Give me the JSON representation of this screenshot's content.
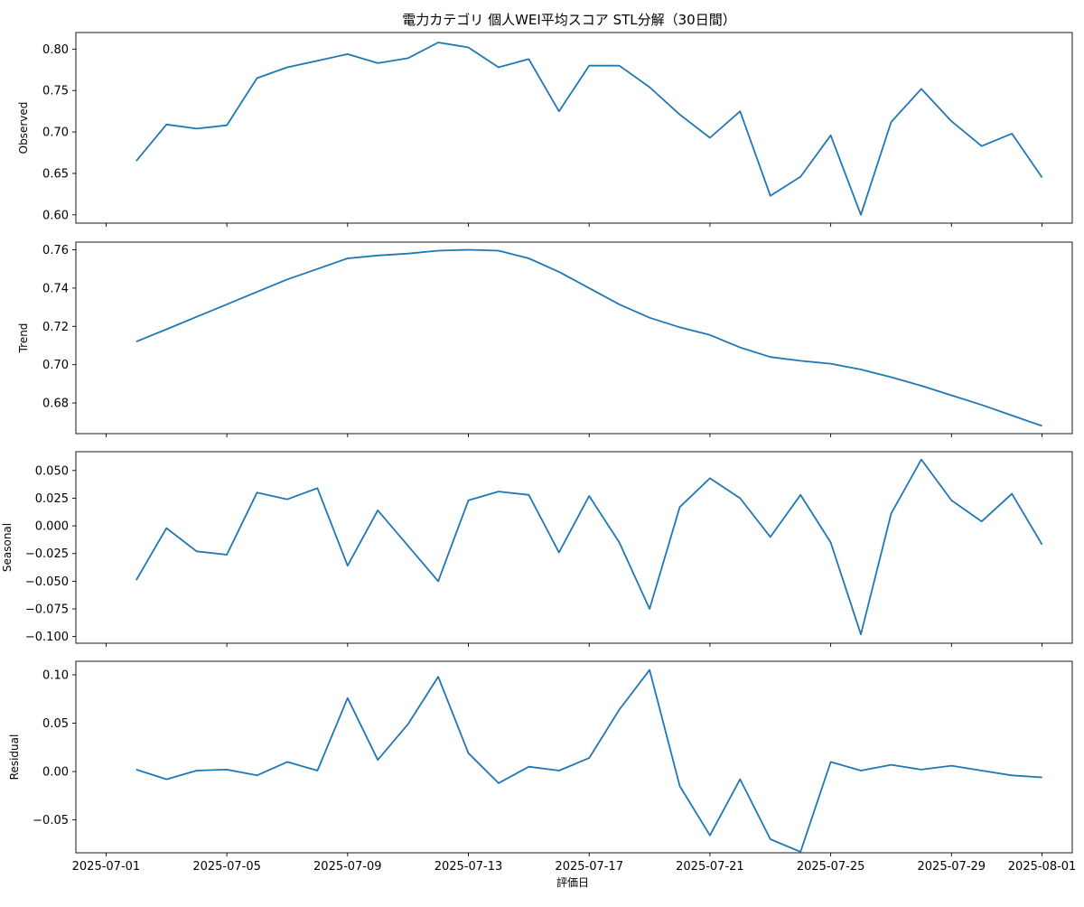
{
  "chart_data": {
    "type": "line",
    "title": "電力カテゴリ 個人WEI平均スコア STL分解（30日間）",
    "xlabel": "評価日",
    "line_color": "#1f77b4",
    "x": [
      "2025-07-02",
      "2025-07-03",
      "2025-07-04",
      "2025-07-05",
      "2025-07-06",
      "2025-07-07",
      "2025-07-08",
      "2025-07-09",
      "2025-07-10",
      "2025-07-11",
      "2025-07-12",
      "2025-07-13",
      "2025-07-14",
      "2025-07-15",
      "2025-07-16",
      "2025-07-17",
      "2025-07-18",
      "2025-07-19",
      "2025-07-20",
      "2025-07-21",
      "2025-07-22",
      "2025-07-23",
      "2025-07-24",
      "2025-07-25",
      "2025-07-26",
      "2025-07-27",
      "2025-07-28",
      "2025-07-29",
      "2025-07-30",
      "2025-07-31",
      "2025-08-01"
    ],
    "x_ticks": [
      "2025-07-01",
      "2025-07-05",
      "2025-07-09",
      "2025-07-13",
      "2025-07-17",
      "2025-07-21",
      "2025-07-25",
      "2025-07-29",
      "2025-08-01"
    ],
    "xlim": [
      "2025-06-30",
      "2025-08-02"
    ],
    "panels": [
      {
        "name": "observed",
        "ylabel": "Observed",
        "ylim": [
          0.59,
          0.82
        ],
        "y_ticks": [
          "0.60",
          "0.65",
          "0.70",
          "0.75",
          "0.80"
        ],
        "values": [
          0.665,
          0.709,
          0.704,
          0.708,
          0.765,
          0.778,
          0.786,
          0.794,
          0.783,
          0.789,
          0.808,
          0.802,
          0.778,
          0.788,
          0.725,
          0.78,
          0.78,
          0.754,
          0.721,
          0.693,
          0.725,
          0.623,
          0.646,
          0.696,
          0.6,
          0.712,
          0.752,
          0.713,
          0.683,
          0.698,
          0.645
        ]
      },
      {
        "name": "trend",
        "ylabel": "Trend",
        "ylim": [
          0.664,
          0.764
        ],
        "y_ticks": [
          "0.68",
          "0.70",
          "0.72",
          "0.74",
          "0.76"
        ],
        "values": [
          0.712,
          0.7185,
          0.725,
          0.7315,
          0.738,
          0.7445,
          0.75,
          0.7555,
          0.757,
          0.758,
          0.7595,
          0.76,
          0.7595,
          0.7555,
          0.7485,
          0.74,
          0.7315,
          0.7245,
          0.7195,
          0.7155,
          0.709,
          0.704,
          0.702,
          0.7005,
          0.6975,
          0.6935,
          0.689,
          0.684,
          0.679,
          0.6735,
          0.668
        ]
      },
      {
        "name": "seasonal",
        "ylabel": "Seasonal",
        "ylim": [
          -0.106,
          0.067
        ],
        "y_ticks": [
          "0.050",
          "0.025",
          "0.000",
          "−0.025",
          "−0.050",
          "−0.075",
          "−0.100"
        ],
        "values": [
          -0.049,
          -0.002,
          -0.023,
          -0.026,
          0.03,
          0.024,
          0.034,
          -0.036,
          0.014,
          -0.018,
          -0.05,
          0.023,
          0.031,
          0.028,
          -0.024,
          0.027,
          -0.015,
          -0.075,
          0.017,
          0.043,
          0.025,
          -0.01,
          0.028,
          -0.015,
          -0.098,
          0.011,
          0.06,
          0.023,
          0.004,
          0.029,
          -0.017
        ]
      },
      {
        "name": "residual",
        "ylabel": "Residual",
        "ylim": [
          -0.084,
          0.114
        ],
        "y_ticks": [
          "0.10",
          "0.05",
          "0.00",
          "−0.05"
        ],
        "values": [
          0.002,
          -0.008,
          0.001,
          0.002,
          -0.004,
          0.01,
          0.001,
          0.076,
          0.012,
          0.049,
          0.098,
          0.019,
          -0.012,
          0.005,
          0.001,
          0.014,
          0.064,
          0.105,
          -0.015,
          -0.066,
          -0.008,
          -0.07,
          -0.083,
          0.01,
          0.001,
          0.007,
          0.002,
          0.006,
          0.001,
          -0.004,
          -0.006
        ]
      }
    ]
  }
}
